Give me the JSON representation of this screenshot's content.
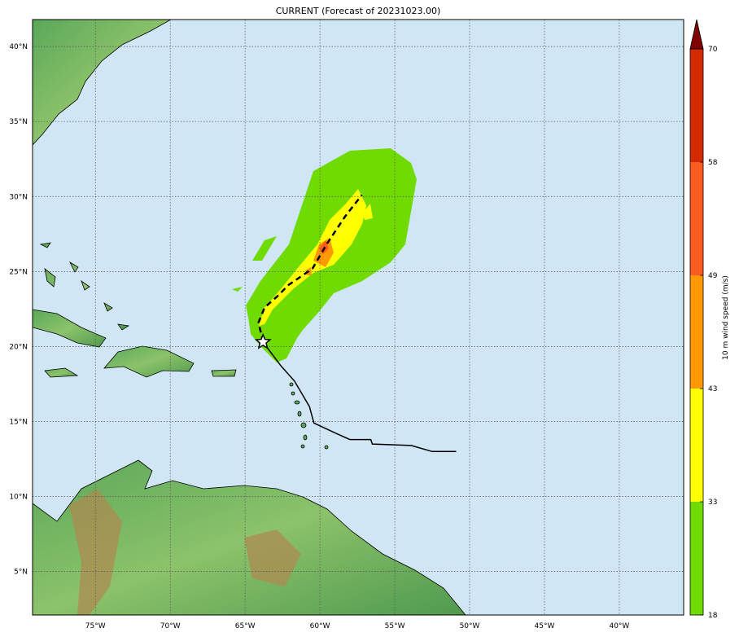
{
  "title": "CURRENT (Forecast of 20231023.00)",
  "map": {
    "lon_range": [
      -79.2,
      -35.7
    ],
    "lat_range": [
      2.1,
      41.8
    ],
    "lon_ticks": [
      {
        "v": -75,
        "label": "75°W"
      },
      {
        "v": -70,
        "label": "70°W"
      },
      {
        "v": -65,
        "label": "65°W"
      },
      {
        "v": -60,
        "label": "60°W"
      },
      {
        "v": -55,
        "label": "55°W"
      },
      {
        "v": -50,
        "label": "50°W"
      },
      {
        "v": -45,
        "label": "45°W"
      },
      {
        "v": -40,
        "label": "40°W"
      }
    ],
    "lat_ticks": [
      {
        "v": 40,
        "label": "40°N"
      },
      {
        "v": 35,
        "label": "35°N"
      },
      {
        "v": 30,
        "label": "30°N"
      },
      {
        "v": 25,
        "label": "25°N"
      },
      {
        "v": 20,
        "label": "20°N"
      },
      {
        "v": 15,
        "label": "15°N"
      },
      {
        "v": 10,
        "label": "10°N"
      },
      {
        "v": 5,
        "label": "5°N"
      }
    ],
    "ocean_color": "#d0e6f5",
    "past_track": [
      [
        -63.8,
        20.3
      ],
      [
        -62.6,
        18.7
      ],
      [
        -61.7,
        17.7
      ],
      [
        -60.7,
        16.0
      ],
      [
        -60.4,
        14.9
      ],
      [
        -58.9,
        14.2
      ],
      [
        -58.0,
        13.8
      ],
      [
        -56.6,
        13.8
      ],
      [
        -56.5,
        13.5
      ],
      [
        -53.9,
        13.4
      ],
      [
        -52.5,
        13.0
      ],
      [
        -50.9,
        13.0
      ]
    ],
    "forecast_track": [
      [
        -63.8,
        20.3
      ],
      [
        -64.1,
        21.6
      ],
      [
        -63.7,
        22.6
      ],
      [
        -62.9,
        23.3
      ],
      [
        -62.1,
        24.1
      ],
      [
        -60.5,
        25.2
      ],
      [
        -59.5,
        26.9
      ],
      [
        -58.3,
        28.7
      ],
      [
        -57.2,
        30.1
      ]
    ],
    "current_position_icon": "star-icon"
  },
  "colorbar": {
    "label": "10 m wind speed (m/s)",
    "ticks": [
      "18",
      "33",
      "43",
      "49",
      "58",
      "70"
    ],
    "colors": [
      "#6fdb00",
      "#ffff00",
      "#ff9900",
      "#ff5a1f",
      "#d42a00"
    ],
    "extend_color": "#800000"
  }
}
